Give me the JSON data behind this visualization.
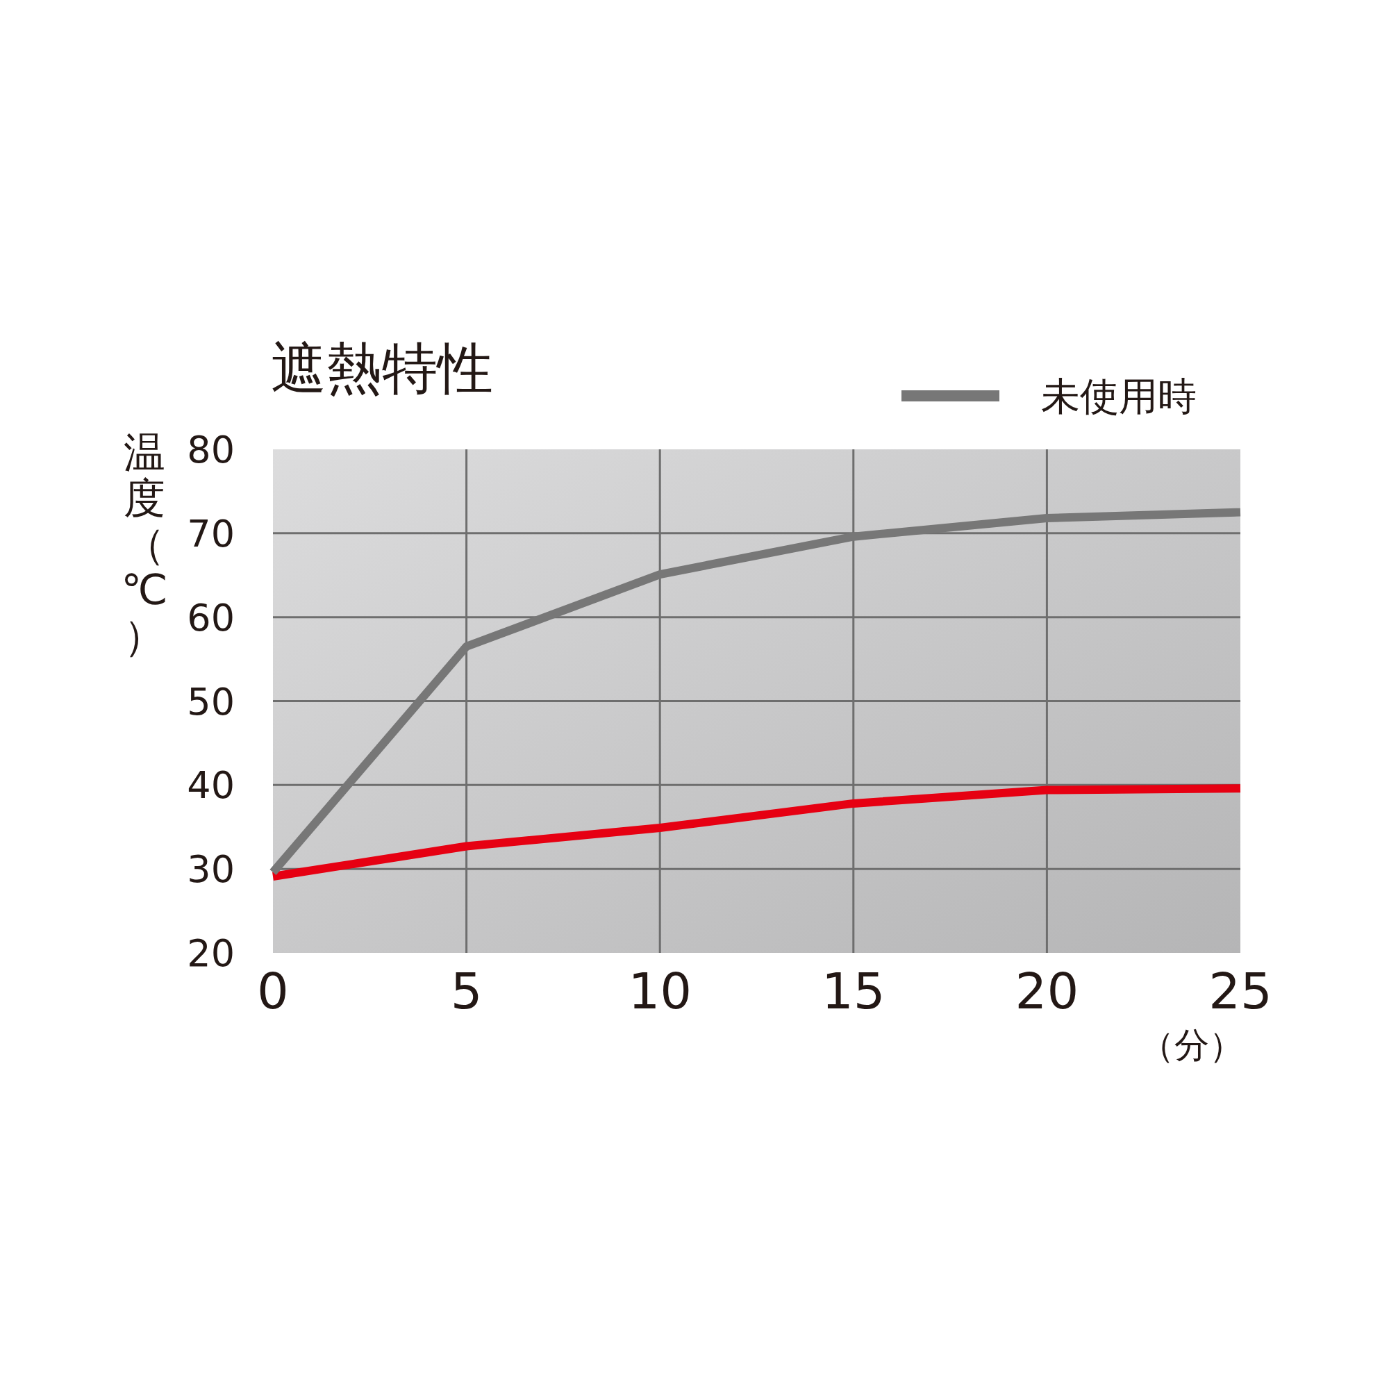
{
  "chart_data": {
    "type": "line",
    "title": "遮熱特性",
    "xlabel": "（分）",
    "ylabel": "温度（℃）",
    "x": [
      0,
      5,
      10,
      15,
      20,
      25
    ],
    "series": [
      {
        "color": "#e60012",
        "values": [
          29.1,
          32.7,
          34.9,
          37.8,
          39.4,
          39.6
        ]
      },
      {
        "name": "未使用時",
        "color": "#777777",
        "values": [
          29.6,
          56.5,
          65.1,
          69.6,
          71.8,
          72.5
        ]
      }
    ],
    "xlim": [
      0,
      25
    ],
    "ylim": [
      20,
      80
    ],
    "xticks": [
      0,
      5,
      10,
      15,
      20,
      25
    ],
    "yticks": [
      20,
      30,
      40,
      50,
      60,
      70,
      80
    ],
    "grid": true,
    "legend": "top right",
    "marker": "none",
    "line_style": "solid"
  }
}
